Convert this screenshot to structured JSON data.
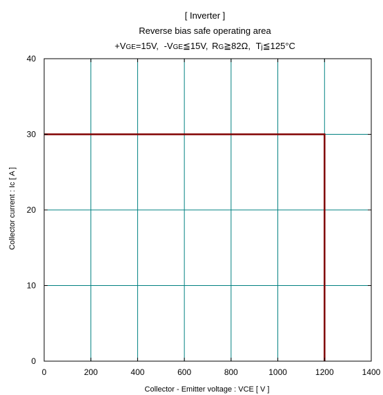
{
  "chart_data": {
    "type": "line",
    "title": "[ Inverter ]",
    "subtitle": "Reverse bias safe operating area",
    "conditions": {
      "vge_pos_prefix": "+V",
      "vge_pos_sub": "GE",
      "vge_pos_value": "=15V,",
      "vge_neg_prefix": "-V",
      "vge_neg_sub": "GE",
      "vge_neg_value": "≦15V,",
      "rg_prefix": "R",
      "rg_sub": "G",
      "rg_value": "≧82Ω,",
      "tj_prefix": "T",
      "tj_sub": "j",
      "tj_value": "≦125°C"
    },
    "xlabel": "Collector - Emitter voltage  :  VCE  [ V ]",
    "ylabel": "Collector current  : Ic  [ A ]",
    "xlim": [
      0,
      1400
    ],
    "ylim": [
      0,
      40
    ],
    "x_ticks": [
      0,
      200,
      400,
      600,
      800,
      1000,
      1200,
      1400
    ],
    "y_ticks": [
      0,
      10,
      20,
      30,
      40
    ],
    "grid": true,
    "grid_color": "#008080",
    "series": [
      {
        "color": "#800000",
        "x": [
          0,
          1200,
          1200
        ],
        "y": [
          30,
          30,
          0
        ]
      }
    ]
  }
}
